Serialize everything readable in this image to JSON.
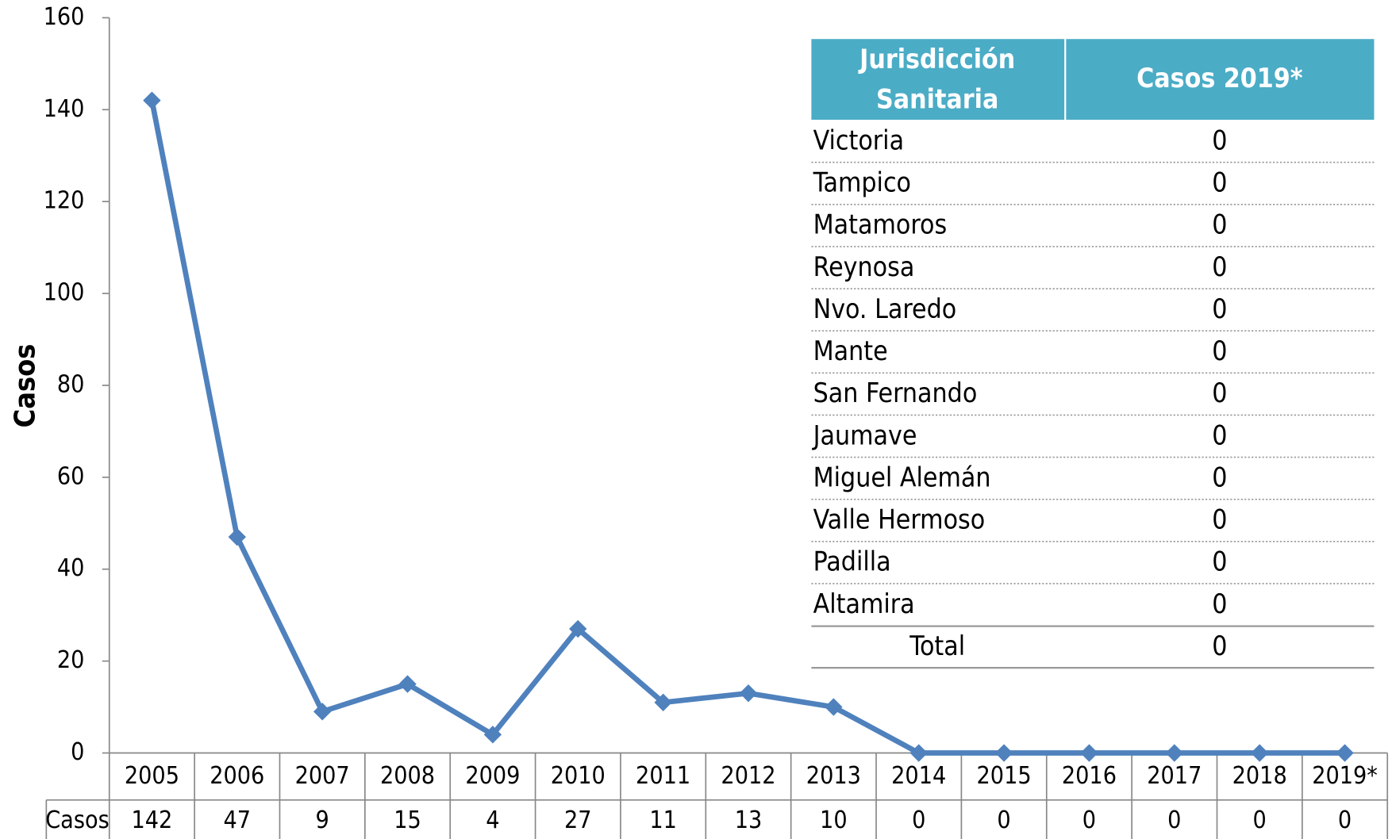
{
  "chart_data": {
    "type": "line",
    "y_label": "Casos",
    "categories": [
      "2005",
      "2006",
      "2007",
      "2008",
      "2009",
      "2010",
      "2011",
      "2012",
      "2013",
      "2014",
      "2015",
      "2016",
      "2017",
      "2018",
      "2019*"
    ],
    "series": [
      {
        "name": "Casos",
        "color": "#4f81bd",
        "values": [
          142,
          47,
          9,
          15,
          4,
          27,
          11,
          13,
          10,
          0,
          0,
          0,
          0,
          0,
          0
        ]
      }
    ],
    "ylim": [
      0,
      160
    ],
    "yticks": [
      0,
      20,
      40,
      60,
      80,
      100,
      120,
      140,
      160
    ]
  },
  "table": {
    "headers": [
      "Jurisdicción Sanitaria",
      "Casos 2019*"
    ],
    "rows": [
      [
        "Victoria",
        0
      ],
      [
        "Tampico",
        0
      ],
      [
        "Matamoros",
        0
      ],
      [
        "Reynosa",
        0
      ],
      [
        "Nvo. Laredo",
        0
      ],
      [
        "Mante",
        0
      ],
      [
        "San Fernando",
        0
      ],
      [
        "Jaumave",
        0
      ],
      [
        "Miguel Alemán",
        0
      ],
      [
        "Valle Hermoso",
        0
      ],
      [
        "Padilla",
        0
      ],
      [
        "Altamira",
        0
      ]
    ],
    "total": [
      "Total",
      0
    ]
  }
}
